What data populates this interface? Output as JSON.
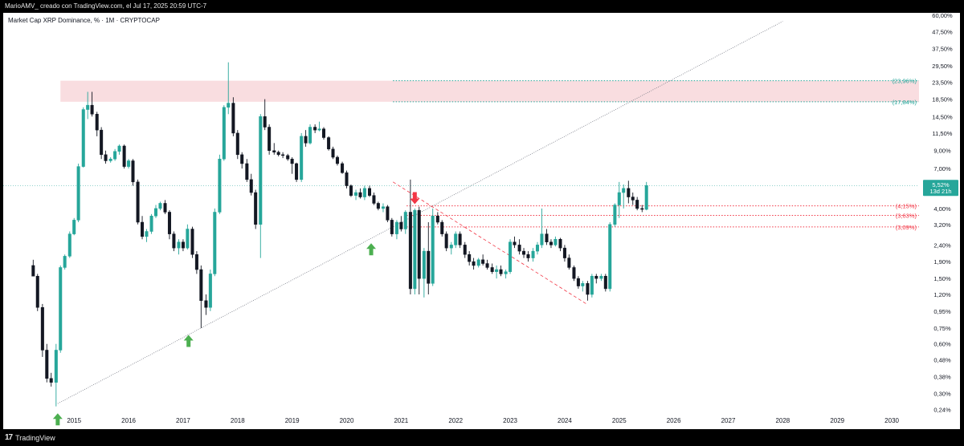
{
  "header": {
    "credit": "MarioAMV_ creado con TradingView.com, el Jul 17, 2025 20:59 UTC-7"
  },
  "symbol": {
    "title": "Market Cap XRP Dominance, % · 1M · CRYPTOCAP"
  },
  "footer": {
    "brand": "TradingView"
  },
  "colors": {
    "up": "#26a69a",
    "down": "#131722",
    "up_fill": "#26a69a",
    "resistance_zone": "#f8d7da",
    "level_green": "#26a69a",
    "level_red": "#f23645",
    "trendline": "#787b86",
    "arrow_up": "#4caf50",
    "arrow_down": "#f23645"
  },
  "chart_data": {
    "type": "candlestick",
    "scale": "log",
    "title": "Market Cap XRP Dominance, % · 1M · CRYPTOCAP",
    "x_ticks": [
      "2015",
      "2016",
      "2017",
      "2018",
      "2019",
      "2020",
      "2021",
      "2022",
      "2023",
      "2024",
      "2025",
      "2026",
      "2027",
      "2028",
      "2029",
      "2030"
    ],
    "x_range": [
      2013.7,
      2030.5
    ],
    "y_ticks": [
      "60,00%",
      "47,50%",
      "37,50%",
      "29,50%",
      "23,50%",
      "18,50%",
      "14,50%",
      "11,50%",
      "9,00%",
      "7,00%",
      "4,00%",
      "3,20%",
      "2,40%",
      "1,90%",
      "1,50%",
      "1,20%",
      "0,95%",
      "0,75%",
      "0,60%",
      "0,48%",
      "0,38%",
      "0,30%",
      "0,24%"
    ],
    "y_tick_values": [
      60,
      47.5,
      37.5,
      29.5,
      23.5,
      18.5,
      14.5,
      11.5,
      9,
      7,
      4,
      3.2,
      2.4,
      1.9,
      1.5,
      1.2,
      0.95,
      0.75,
      0.6,
      0.48,
      0.38,
      0.3,
      0.24
    ],
    "y_range": [
      0.225,
      62
    ],
    "last_price": {
      "label": "5,52%",
      "countdown": "13d 21h",
      "value": 5.52,
      "color": "#26a69a"
    },
    "levels": [
      {
        "value": 23.96,
        "label": "(23,96%)",
        "color": "#26a69a",
        "x_start": 2020.85
      },
      {
        "value": 17.84,
        "label": "(17,84%)",
        "color": "#26a69a",
        "x_start": 2020.85
      },
      {
        "value": 4.15,
        "label": "(4,15%)",
        "color": "#f23645",
        "x_start": 2021.1
      },
      {
        "value": 3.63,
        "label": "(3,63%)",
        "color": "#f23645",
        "x_start": 2021.1
      },
      {
        "value": 3.09,
        "label": "(3,09%)",
        "color": "#f23645",
        "x_start": 2021.1
      }
    ],
    "zones": [
      {
        "x_start": 2014.75,
        "x_end": 2030.5,
        "y_low": 17.84,
        "y_high": 23.96
      }
    ],
    "trendlines": [
      {
        "from": [
          2014.7,
          0.26
        ],
        "to": [
          2028.0,
          55.0
        ],
        "style": "dotted"
      },
      {
        "from": [
          2020.85,
          5.8
        ],
        "to": [
          2024.4,
          1.05
        ],
        "style": "dashed",
        "color": "#f23645"
      }
    ],
    "markers": [
      {
        "x": 2014.7,
        "y": 0.24,
        "dir": "up"
      },
      {
        "x": 2017.1,
        "y": 0.72,
        "dir": "up"
      },
      {
        "x": 2020.45,
        "y": 2.6,
        "dir": "up"
      },
      {
        "x": 2021.25,
        "y": 4.6,
        "dir": "down"
      }
    ],
    "candles": [
      {
        "t": 2014.25,
        "o": 1.8,
        "h": 1.95,
        "l": 1.7,
        "c": 1.55
      },
      {
        "t": 2014.33,
        "o": 1.55,
        "h": 1.6,
        "l": 0.95,
        "c": 1.0
      },
      {
        "t": 2014.42,
        "o": 1.0,
        "h": 1.05,
        "l": 0.5,
        "c": 0.55
      },
      {
        "t": 2014.5,
        "o": 0.55,
        "h": 0.6,
        "l": 0.35,
        "c": 0.37
      },
      {
        "t": 2014.58,
        "o": 0.37,
        "h": 0.4,
        "l": 0.33,
        "c": 0.35
      },
      {
        "t": 2014.67,
        "o": 0.35,
        "h": 0.6,
        "l": 0.25,
        "c": 0.55
      },
      {
        "t": 2014.75,
        "o": 0.55,
        "h": 1.8,
        "l": 0.53,
        "c": 1.75
      },
      {
        "t": 2014.83,
        "o": 1.75,
        "h": 2.1,
        "l": 1.7,
        "c": 2.05
      },
      {
        "t": 2014.92,
        "o": 2.05,
        "h": 2.9,
        "l": 2.0,
        "c": 2.8
      },
      {
        "t": 2015.0,
        "o": 2.8,
        "h": 3.5,
        "l": 2.75,
        "c": 3.4
      },
      {
        "t": 2015.08,
        "o": 3.4,
        "h": 7.5,
        "l": 3.3,
        "c": 7.2
      },
      {
        "t": 2015.17,
        "o": 7.2,
        "h": 16.5,
        "l": 7.1,
        "c": 16.0
      },
      {
        "t": 2015.25,
        "o": 16.0,
        "h": 20.5,
        "l": 14.0,
        "c": 17.0
      },
      {
        "t": 2015.33,
        "o": 17.0,
        "h": 20.5,
        "l": 14.5,
        "c": 15.0
      },
      {
        "t": 2015.42,
        "o": 15.0,
        "h": 15.5,
        "l": 11.0,
        "c": 12.0
      },
      {
        "t": 2015.5,
        "o": 12.0,
        "h": 12.5,
        "l": 8.0,
        "c": 8.5
      },
      {
        "t": 2015.58,
        "o": 8.5,
        "h": 9.0,
        "l": 7.5,
        "c": 7.8
      },
      {
        "t": 2015.67,
        "o": 7.8,
        "h": 8.2,
        "l": 7.6,
        "c": 8.0
      },
      {
        "t": 2015.75,
        "o": 8.0,
        "h": 9.2,
        "l": 7.8,
        "c": 8.9
      },
      {
        "t": 2015.83,
        "o": 8.9,
        "h": 9.8,
        "l": 8.5,
        "c": 9.6
      },
      {
        "t": 2015.92,
        "o": 9.6,
        "h": 9.8,
        "l": 7.0,
        "c": 7.2
      },
      {
        "t": 2016.0,
        "o": 7.2,
        "h": 8.0,
        "l": 7.0,
        "c": 7.8
      },
      {
        "t": 2016.08,
        "o": 7.8,
        "h": 8.0,
        "l": 5.5,
        "c": 5.8
      },
      {
        "t": 2016.17,
        "o": 5.8,
        "h": 6.0,
        "l": 3.2,
        "c": 3.3
      },
      {
        "t": 2016.25,
        "o": 3.3,
        "h": 3.6,
        "l": 2.6,
        "c": 2.7
      },
      {
        "t": 2016.33,
        "o": 2.7,
        "h": 3.0,
        "l": 2.5,
        "c": 2.9
      },
      {
        "t": 2016.42,
        "o": 2.9,
        "h": 3.7,
        "l": 2.8,
        "c": 3.6
      },
      {
        "t": 2016.5,
        "o": 3.6,
        "h": 4.2,
        "l": 3.5,
        "c": 4.0
      },
      {
        "t": 2016.58,
        "o": 4.0,
        "h": 4.4,
        "l": 3.9,
        "c": 4.3
      },
      {
        "t": 2016.67,
        "o": 4.3,
        "h": 4.5,
        "l": 3.7,
        "c": 3.8
      },
      {
        "t": 2016.75,
        "o": 3.8,
        "h": 3.9,
        "l": 2.6,
        "c": 2.8
      },
      {
        "t": 2016.83,
        "o": 2.8,
        "h": 2.9,
        "l": 2.2,
        "c": 2.3
      },
      {
        "t": 2016.92,
        "o": 2.3,
        "h": 2.6,
        "l": 2.1,
        "c": 2.5
      },
      {
        "t": 2017.0,
        "o": 2.5,
        "h": 2.6,
        "l": 2.2,
        "c": 2.3
      },
      {
        "t": 2017.08,
        "o": 2.3,
        "h": 3.2,
        "l": 2.25,
        "c": 3.0
      },
      {
        "t": 2017.17,
        "o": 3.0,
        "h": 3.1,
        "l": 2.0,
        "c": 2.1
      },
      {
        "t": 2017.25,
        "o": 2.1,
        "h": 2.2,
        "l": 1.6,
        "c": 1.7
      },
      {
        "t": 2017.33,
        "o": 1.7,
        "h": 1.8,
        "l": 0.75,
        "c": 1.1
      },
      {
        "t": 2017.42,
        "o": 1.1,
        "h": 1.2,
        "l": 0.9,
        "c": 1.0
      },
      {
        "t": 2017.5,
        "o": 1.0,
        "h": 1.7,
        "l": 0.95,
        "c": 1.6
      },
      {
        "t": 2017.58,
        "o": 1.6,
        "h": 4.0,
        "l": 1.55,
        "c": 3.8
      },
      {
        "t": 2017.67,
        "o": 3.8,
        "h": 8.5,
        "l": 3.7,
        "c": 8.0
      },
      {
        "t": 2017.75,
        "o": 8.0,
        "h": 17.0,
        "l": 7.8,
        "c": 16.5
      },
      {
        "t": 2017.83,
        "o": 16.5,
        "h": 31.0,
        "l": 15.0,
        "c": 17.5
      },
      {
        "t": 2017.92,
        "o": 17.5,
        "h": 19.0,
        "l": 11.0,
        "c": 11.5
      },
      {
        "t": 2018.0,
        "o": 11.5,
        "h": 12.0,
        "l": 8.0,
        "c": 8.5
      },
      {
        "t": 2018.08,
        "o": 8.5,
        "h": 8.8,
        "l": 7.0,
        "c": 7.5
      },
      {
        "t": 2018.17,
        "o": 7.5,
        "h": 8.0,
        "l": 5.8,
        "c": 6.0
      },
      {
        "t": 2018.25,
        "o": 6.0,
        "h": 6.5,
        "l": 4.8,
        "c": 5.0
      },
      {
        "t": 2018.33,
        "o": 5.0,
        "h": 5.2,
        "l": 3.0,
        "c": 3.2
      },
      {
        "t": 2018.42,
        "o": 3.2,
        "h": 15.0,
        "l": 2.0,
        "c": 14.5
      },
      {
        "t": 2018.5,
        "o": 14.5,
        "h": 18.5,
        "l": 12.0,
        "c": 12.5
      },
      {
        "t": 2018.58,
        "o": 12.5,
        "h": 13.0,
        "l": 8.5,
        "c": 9.0
      },
      {
        "t": 2018.67,
        "o": 9.0,
        "h": 10.0,
        "l": 8.5,
        "c": 8.8
      },
      {
        "t": 2018.75,
        "o": 8.8,
        "h": 9.0,
        "l": 8.3,
        "c": 8.5
      },
      {
        "t": 2018.83,
        "o": 8.5,
        "h": 8.8,
        "l": 8.1,
        "c": 8.4
      },
      {
        "t": 2018.92,
        "o": 8.4,
        "h": 8.6,
        "l": 7.8,
        "c": 8.0
      },
      {
        "t": 2019.0,
        "o": 8.0,
        "h": 8.2,
        "l": 6.5,
        "c": 7.5
      },
      {
        "t": 2019.08,
        "o": 7.5,
        "h": 7.6,
        "l": 5.8,
        "c": 6.0
      },
      {
        "t": 2019.17,
        "o": 6.0,
        "h": 11.5,
        "l": 5.8,
        "c": 11.0
      },
      {
        "t": 2019.25,
        "o": 11.0,
        "h": 12.0,
        "l": 9.5,
        "c": 10.0
      },
      {
        "t": 2019.33,
        "o": 10.0,
        "h": 13.0,
        "l": 9.8,
        "c": 12.5
      },
      {
        "t": 2019.42,
        "o": 12.5,
        "h": 13.0,
        "l": 11.5,
        "c": 12.0
      },
      {
        "t": 2019.5,
        "o": 12.0,
        "h": 13.5,
        "l": 11.8,
        "c": 12.2
      },
      {
        "t": 2019.58,
        "o": 12.2,
        "h": 12.5,
        "l": 10.5,
        "c": 10.8
      },
      {
        "t": 2019.67,
        "o": 10.8,
        "h": 11.0,
        "l": 9.0,
        "c": 9.2
      },
      {
        "t": 2019.75,
        "o": 9.2,
        "h": 9.5,
        "l": 8.0,
        "c": 8.2
      },
      {
        "t": 2019.83,
        "o": 8.2,
        "h": 8.4,
        "l": 7.3,
        "c": 7.5
      },
      {
        "t": 2019.92,
        "o": 7.5,
        "h": 7.7,
        "l": 6.5,
        "c": 6.6
      },
      {
        "t": 2020.0,
        "o": 6.6,
        "h": 6.8,
        "l": 5.3,
        "c": 5.5
      },
      {
        "t": 2020.08,
        "o": 5.5,
        "h": 5.6,
        "l": 4.7,
        "c": 4.8
      },
      {
        "t": 2020.17,
        "o": 4.8,
        "h": 5.2,
        "l": 4.5,
        "c": 5.0
      },
      {
        "t": 2020.25,
        "o": 5.0,
        "h": 5.3,
        "l": 4.6,
        "c": 4.7
      },
      {
        "t": 2020.33,
        "o": 4.7,
        "h": 5.5,
        "l": 4.5,
        "c": 5.3
      },
      {
        "t": 2020.42,
        "o": 5.3,
        "h": 5.5,
        "l": 4.7,
        "c": 4.8
      },
      {
        "t": 2020.5,
        "o": 4.8,
        "h": 5.0,
        "l": 4.2,
        "c": 4.3
      },
      {
        "t": 2020.58,
        "o": 4.3,
        "h": 4.4,
        "l": 3.9,
        "c": 4.0
      },
      {
        "t": 2020.67,
        "o": 4.0,
        "h": 4.3,
        "l": 3.8,
        "c": 4.1
      },
      {
        "t": 2020.75,
        "o": 4.1,
        "h": 4.2,
        "l": 3.3,
        "c": 3.4
      },
      {
        "t": 2020.83,
        "o": 3.4,
        "h": 3.5,
        "l": 2.7,
        "c": 2.8
      },
      {
        "t": 2020.92,
        "o": 2.8,
        "h": 3.4,
        "l": 2.6,
        "c": 3.3
      },
      {
        "t": 2021.0,
        "o": 3.3,
        "h": 3.6,
        "l": 2.9,
        "c": 3.0
      },
      {
        "t": 2021.08,
        "o": 3.0,
        "h": 3.9,
        "l": 2.8,
        "c": 3.8
      },
      {
        "t": 2021.17,
        "o": 3.8,
        "h": 6.0,
        "l": 1.2,
        "c": 1.3
      },
      {
        "t": 2021.25,
        "o": 1.3,
        "h": 4.0,
        "l": 1.2,
        "c": 3.9
      },
      {
        "t": 2021.33,
        "o": 3.9,
        "h": 4.1,
        "l": 1.2,
        "c": 1.5
      },
      {
        "t": 2021.42,
        "o": 1.5,
        "h": 2.3,
        "l": 1.15,
        "c": 2.2
      },
      {
        "t": 2021.5,
        "o": 2.2,
        "h": 3.3,
        "l": 1.2,
        "c": 1.4
      },
      {
        "t": 2021.58,
        "o": 1.4,
        "h": 4.0,
        "l": 1.35,
        "c": 3.6
      },
      {
        "t": 2021.67,
        "o": 3.6,
        "h": 3.8,
        "l": 3.2,
        "c": 3.3
      },
      {
        "t": 2021.75,
        "o": 3.3,
        "h": 3.4,
        "l": 2.7,
        "c": 2.8
      },
      {
        "t": 2021.83,
        "o": 2.8,
        "h": 2.9,
        "l": 2.2,
        "c": 2.3
      },
      {
        "t": 2021.92,
        "o": 2.3,
        "h": 2.5,
        "l": 2.1,
        "c": 2.4
      },
      {
        "t": 2022.0,
        "o": 2.4,
        "h": 2.9,
        "l": 2.3,
        "c": 2.8
      },
      {
        "t": 2022.08,
        "o": 2.8,
        "h": 2.9,
        "l": 2.3,
        "c": 2.4
      },
      {
        "t": 2022.17,
        "o": 2.4,
        "h": 2.5,
        "l": 2.0,
        "c": 2.1
      },
      {
        "t": 2022.25,
        "o": 2.1,
        "h": 2.2,
        "l": 1.8,
        "c": 1.9
      },
      {
        "t": 2022.33,
        "o": 1.9,
        "h": 2.0,
        "l": 1.7,
        "c": 1.8
      },
      {
        "t": 2022.42,
        "o": 1.8,
        "h": 2.0,
        "l": 1.75,
        "c": 1.95
      },
      {
        "t": 2022.5,
        "o": 1.95,
        "h": 2.1,
        "l": 1.8,
        "c": 1.85
      },
      {
        "t": 2022.58,
        "o": 1.85,
        "h": 1.95,
        "l": 1.7,
        "c": 1.75
      },
      {
        "t": 2022.67,
        "o": 1.75,
        "h": 1.85,
        "l": 1.6,
        "c": 1.65
      },
      {
        "t": 2022.75,
        "o": 1.65,
        "h": 1.8,
        "l": 1.5,
        "c": 1.7
      },
      {
        "t": 2022.83,
        "o": 1.7,
        "h": 1.8,
        "l": 1.55,
        "c": 1.6
      },
      {
        "t": 2022.92,
        "o": 1.6,
        "h": 1.7,
        "l": 1.5,
        "c": 1.65
      },
      {
        "t": 2023.0,
        "o": 1.65,
        "h": 2.6,
        "l": 1.6,
        "c": 2.5
      },
      {
        "t": 2023.08,
        "o": 2.5,
        "h": 2.7,
        "l": 2.3,
        "c": 2.4
      },
      {
        "t": 2023.17,
        "o": 2.4,
        "h": 2.6,
        "l": 2.1,
        "c": 2.2
      },
      {
        "t": 2023.25,
        "o": 2.2,
        "h": 2.3,
        "l": 2.0,
        "c": 2.1
      },
      {
        "t": 2023.33,
        "o": 2.1,
        "h": 2.2,
        "l": 1.9,
        "c": 2.0
      },
      {
        "t": 2023.42,
        "o": 2.0,
        "h": 2.3,
        "l": 1.9,
        "c": 2.2
      },
      {
        "t": 2023.5,
        "o": 2.2,
        "h": 2.5,
        "l": 2.1,
        "c": 2.4
      },
      {
        "t": 2023.58,
        "o": 2.4,
        "h": 4.0,
        "l": 2.3,
        "c": 2.8
      },
      {
        "t": 2023.67,
        "o": 2.8,
        "h": 3.0,
        "l": 2.4,
        "c": 2.5
      },
      {
        "t": 2023.75,
        "o": 2.5,
        "h": 2.6,
        "l": 2.3,
        "c": 2.4
      },
      {
        "t": 2023.83,
        "o": 2.4,
        "h": 2.7,
        "l": 2.35,
        "c": 2.6
      },
      {
        "t": 2023.92,
        "o": 2.6,
        "h": 2.65,
        "l": 2.2,
        "c": 2.3
      },
      {
        "t": 2024.0,
        "o": 2.3,
        "h": 2.4,
        "l": 1.9,
        "c": 2.0
      },
      {
        "t": 2024.08,
        "o": 2.0,
        "h": 2.1,
        "l": 1.7,
        "c": 1.75
      },
      {
        "t": 2024.17,
        "o": 1.75,
        "h": 1.8,
        "l": 1.45,
        "c": 1.5
      },
      {
        "t": 2024.25,
        "o": 1.5,
        "h": 1.55,
        "l": 1.3,
        "c": 1.35
      },
      {
        "t": 2024.33,
        "o": 1.35,
        "h": 1.45,
        "l": 1.25,
        "c": 1.4
      },
      {
        "t": 2024.42,
        "o": 1.4,
        "h": 1.45,
        "l": 1.1,
        "c": 1.2
      },
      {
        "t": 2024.5,
        "o": 1.2,
        "h": 1.6,
        "l": 1.15,
        "c": 1.55
      },
      {
        "t": 2024.58,
        "o": 1.55,
        "h": 1.6,
        "l": 1.4,
        "c": 1.5
      },
      {
        "t": 2024.67,
        "o": 1.5,
        "h": 1.6,
        "l": 1.45,
        "c": 1.55
      },
      {
        "t": 2024.75,
        "o": 1.55,
        "h": 1.6,
        "l": 1.25,
        "c": 1.3
      },
      {
        "t": 2024.83,
        "o": 1.3,
        "h": 3.3,
        "l": 1.25,
        "c": 3.2
      },
      {
        "t": 2024.92,
        "o": 3.2,
        "h": 4.3,
        "l": 3.1,
        "c": 4.2
      },
      {
        "t": 2025.0,
        "o": 4.2,
        "h": 5.8,
        "l": 3.5,
        "c": 5.0
      },
      {
        "t": 2025.08,
        "o": 5.0,
        "h": 5.6,
        "l": 4.0,
        "c": 5.3
      },
      {
        "t": 2025.17,
        "o": 5.3,
        "h": 5.9,
        "l": 4.3,
        "c": 4.7
      },
      {
        "t": 2025.25,
        "o": 4.7,
        "h": 5.0,
        "l": 4.2,
        "c": 4.5
      },
      {
        "t": 2025.33,
        "o": 4.5,
        "h": 4.7,
        "l": 3.9,
        "c": 4.0
      },
      {
        "t": 2025.42,
        "o": 4.0,
        "h": 4.2,
        "l": 3.8,
        "c": 3.95
      },
      {
        "t": 2025.5,
        "o": 3.95,
        "h": 5.8,
        "l": 3.9,
        "c": 5.52
      }
    ]
  }
}
